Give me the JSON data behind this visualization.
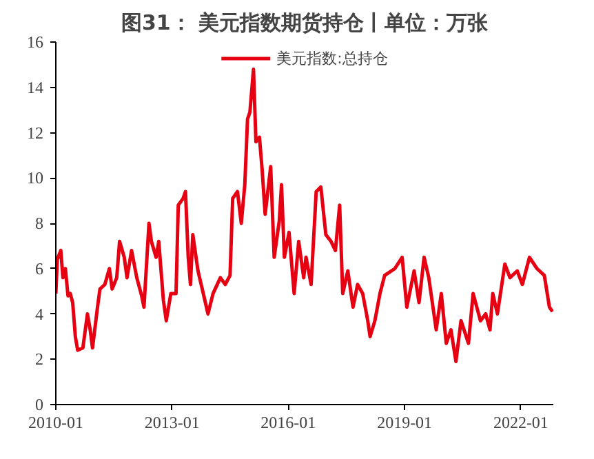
{
  "chart_data": {
    "type": "line",
    "title": "图31： 美元指数期货持仓丨单位：万张",
    "xlim": [
      "2010-01-01",
      "2022-11-03"
    ],
    "xticks": [
      "2010-01",
      "2013-01",
      "2016-01",
      "2019-01",
      "2022-01"
    ],
    "ylim": [
      0,
      16
    ],
    "yticks": [
      0,
      2,
      4,
      6,
      8,
      10,
      12,
      14,
      16
    ],
    "grid": false,
    "legend": "top",
    "marker": "none",
    "line_style": "solid",
    "series": [
      {
        "name": "美元指数:总持仓",
        "color": "#e60012",
        "x": [
          "2010-01-01",
          "2010-01-15",
          "2010-02-17",
          "2010-03-09",
          "2010-04-01",
          "2010-04-26",
          "2010-05-17",
          "2010-06-09",
          "2010-07-04",
          "2010-07-26",
          "2010-09-13",
          "2010-10-26",
          "2010-11-21",
          "2010-12-13",
          "2011-01-29",
          "2011-02-21",
          "2011-04-08",
          "2011-05-21",
          "2011-06-16",
          "2011-07-29",
          "2011-08-25",
          "2011-10-08",
          "2011-11-03",
          "2011-12-16",
          "2012-02-03",
          "2012-03-20",
          "2012-04-11",
          "2012-05-28",
          "2012-06-20",
          "2012-08-03",
          "2012-08-28",
          "2012-10-11",
          "2012-11-07",
          "2012-12-20",
          "2013-02-07",
          "2013-02-28",
          "2013-04-15",
          "2013-05-07",
          "2013-06-02",
          "2013-06-23",
          "2013-07-15",
          "2013-09-02",
          "2013-10-22",
          "2013-12-05",
          "2014-01-22",
          "2014-04-01",
          "2014-05-17",
          "2014-07-01",
          "2014-07-26",
          "2014-09-09",
          "2014-10-15",
          "2014-11-17",
          "2014-12-13",
          "2015-01-04",
          "2015-02-07",
          "2015-03-02",
          "2015-04-04",
          "2015-04-29",
          "2015-05-28",
          "2015-07-19",
          "2015-08-21",
          "2015-10-08",
          "2015-10-29",
          "2015-11-25",
          "2016-01-08",
          "2016-02-25",
          "2016-04-08",
          "2016-05-25",
          "2016-06-16",
          "2016-08-03",
          "2016-09-20",
          "2016-11-03",
          "2016-12-20",
          "2017-02-07",
          "2017-03-20",
          "2017-04-29",
          "2017-05-28",
          "2017-07-15",
          "2017-09-02",
          "2017-10-15",
          "2017-12-02",
          "2018-01-19",
          "2018-02-10",
          "2018-03-27",
          "2018-05-14",
          "2018-06-27",
          "2018-10-01",
          "2018-12-09",
          "2019-01-22",
          "2019-04-01",
          "2019-05-17",
          "2019-07-04",
          "2019-08-17",
          "2019-10-26",
          "2019-12-13",
          "2020-01-29",
          "2020-03-13",
          "2020-04-29",
          "2020-06-16",
          "2020-08-25",
          "2020-10-08",
          "2020-12-16",
          "2021-02-03",
          "2021-03-16",
          "2021-04-11",
          "2021-05-25",
          "2021-08-03",
          "2021-09-20",
          "2021-11-28",
          "2022-01-15",
          "2022-03-23",
          "2022-06-02",
          "2022-08-10",
          "2022-09-27",
          "2022-10-26"
        ],
        "values": [
          4.9,
          6.4,
          6.8,
          5.6,
          6.0,
          4.8,
          4.9,
          4.5,
          3.0,
          2.4,
          2.5,
          4.0,
          3.3,
          2.5,
          4.3,
          5.1,
          5.3,
          6.0,
          5.1,
          5.6,
          7.2,
          6.5,
          5.6,
          6.8,
          5.6,
          4.8,
          4.3,
          8.0,
          7.2,
          6.5,
          7.2,
          4.6,
          3.7,
          4.9,
          4.9,
          8.8,
          9.1,
          9.4,
          6.5,
          5.3,
          7.5,
          5.9,
          4.9,
          4.0,
          4.9,
          5.6,
          5.3,
          5.7,
          9.1,
          9.4,
          8.0,
          9.7,
          12.6,
          12.9,
          14.8,
          11.6,
          11.8,
          10.4,
          8.4,
          10.5,
          6.5,
          8.1,
          9.7,
          6.5,
          7.6,
          4.9,
          7.2,
          5.6,
          6.5,
          5.3,
          9.4,
          9.6,
          7.5,
          7.2,
          6.8,
          8.8,
          4.9,
          5.9,
          4.3,
          5.3,
          4.9,
          3.7,
          3.0,
          3.7,
          4.9,
          5.7,
          6.0,
          6.5,
          4.3,
          5.9,
          4.5,
          6.5,
          5.6,
          3.3,
          4.9,
          2.7,
          3.3,
          1.9,
          3.7,
          2.7,
          4.9,
          3.7,
          4.0,
          3.3,
          4.9,
          4.0,
          6.2,
          5.6,
          5.9,
          5.3,
          6.5,
          6.0,
          5.7,
          4.3,
          4.1
        ]
      }
    ]
  }
}
